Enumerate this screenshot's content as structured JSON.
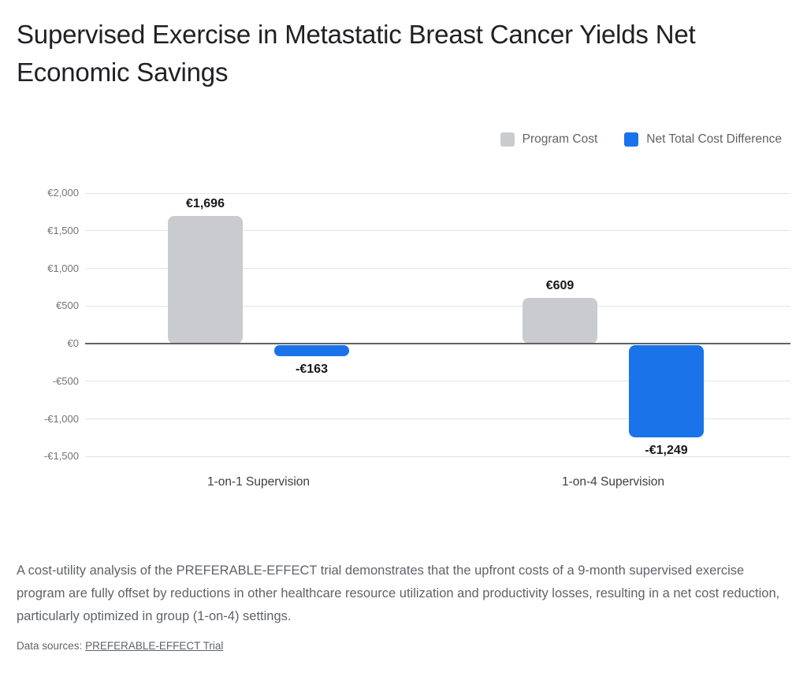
{
  "page": {
    "title": "Supervised Exercise in Metastatic Breast Cancer Yields Net Economic Savings",
    "caption": "A cost-utility analysis of the PREFERABLE-EFFECT trial demonstrates that the upfront costs of a 9-month supervised exercise program are fully offset by reductions in other healthcare resource utilization and productivity losses, resulting in a net cost reduction, particularly optimized in group (1-on-4) settings.",
    "data_sources_label": "Data sources:",
    "data_sources_link": "PREFERABLE-EFFECT Trial"
  },
  "legend": [
    {
      "label": "Program Cost",
      "color": "#C9CBCE"
    },
    {
      "label": "Net Total Cost Difference",
      "color": "#1A73E8"
    }
  ],
  "chart_data": {
    "type": "bar",
    "title": "Supervised Exercise in Metastatic Breast Cancer Yields Net Economic Savings",
    "categories": [
      "1-on-1 Supervision",
      "1-on-4 Supervision"
    ],
    "series": [
      {
        "name": "Program Cost",
        "color": "#C9CBCE",
        "values": [
          1696,
          609
        ],
        "labels": [
          "€1,696",
          "€609"
        ]
      },
      {
        "name": "Net Total Cost Difference",
        "color": "#1A73E8",
        "values": [
          -163,
          -1249
        ],
        "labels": [
          "-€163",
          "-€1,249"
        ]
      }
    ],
    "y_ticks": [
      {
        "value": 2000,
        "label": "€2,000"
      },
      {
        "value": 1500,
        "label": "€1,500"
      },
      {
        "value": 1000,
        "label": "€1,000"
      },
      {
        "value": 500,
        "label": "€500"
      },
      {
        "value": 0,
        "label": "€0"
      },
      {
        "value": -500,
        "label": "-€500"
      },
      {
        "value": -1000,
        "label": "-€1,000"
      },
      {
        "value": -1500,
        "label": "-€1,500"
      }
    ],
    "ylim": [
      -1500,
      2000
    ],
    "grid": true,
    "legend_position": "top-right",
    "currency": "EUR",
    "zero_axis_color": "#5F6368"
  }
}
